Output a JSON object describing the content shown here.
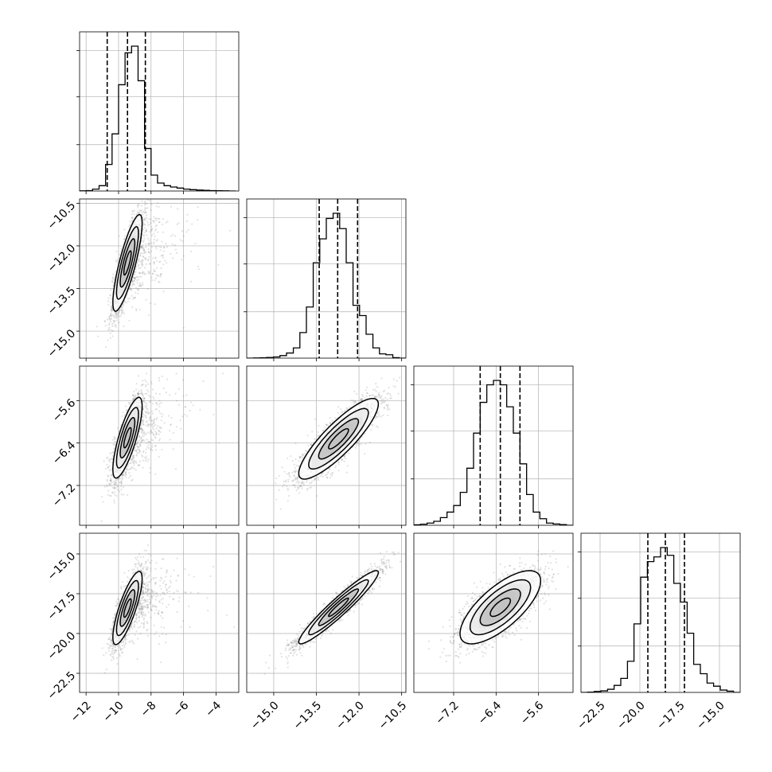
{
  "chart_data": {
    "type": "corner",
    "grid": true,
    "parameters": [
      {
        "name": "",
        "range": [
          -12.4,
          -2.6
        ],
        "ticks": [
          -12,
          -10,
          -8,
          -6,
          -4
        ],
        "tick_labels": [
          "−12",
          "−10",
          "−8",
          "−6",
          "−4"
        ],
        "quantiles": [
          -10.7,
          -9.45,
          -8.35
        ],
        "hist": {
          "bin_edges": [
            -12.4,
            -12.0,
            -11.6,
            -11.2,
            -10.8,
            -10.4,
            -10.0,
            -9.6,
            -9.2,
            -8.8,
            -8.4,
            -8.0,
            -7.6,
            -7.2,
            -6.8,
            -6.4,
            -6.0,
            -5.6,
            -5.2,
            -4.8,
            -4.4,
            -4.0,
            -3.6,
            -3.2,
            -2.8
          ],
          "counts": [
            1,
            3,
            14,
            40,
            200,
            430,
            800,
            1040,
            1090,
            830,
            320,
            120,
            60,
            40,
            30,
            22,
            14,
            10,
            7,
            5,
            3,
            2,
            1,
            0
          ]
        }
      },
      {
        "name": "",
        "range": [
          -15.95,
          -10.35
        ],
        "ticks": [
          -15.0,
          -13.5,
          -12.0,
          -10.5
        ],
        "tick_labels": [
          "−15.0",
          "−13.5",
          "−12.0",
          "−10.5"
        ],
        "quantiles": [
          -13.4,
          -12.75,
          -12.05
        ],
        "mean": -12.72,
        "std": 0.7,
        "hist": {
          "bin_edges": [
            -15.95,
            -15.71,
            -15.48,
            -15.25,
            -15.01,
            -14.78,
            -14.55,
            -14.31,
            -14.08,
            -13.85,
            -13.61,
            -13.38,
            -13.15,
            -12.91,
            -12.68,
            -12.45,
            -12.21,
            -11.98,
            -11.75,
            -11.51,
            -11.28,
            -11.05,
            -10.81,
            -10.58,
            -10.35
          ],
          "counts": [
            0,
            1,
            2,
            4,
            7,
            15,
            30,
            60,
            150,
            300,
            560,
            700,
            820,
            850,
            760,
            560,
            310,
            250,
            140,
            60,
            25,
            20,
            3,
            0
          ]
        }
      },
      {
        "name": "",
        "range": [
          -7.95,
          -4.95
        ],
        "ticks": [
          -7.2,
          -6.4,
          -5.6
        ],
        "tick_labels": [
          "−7.2",
          "−6.4",
          "−5.6"
        ],
        "quantiles": [
          -6.7,
          -6.32,
          -5.95
        ],
        "mean": -6.32,
        "std": 0.38,
        "hist": {
          "bin_edges": [
            -7.95,
            -7.825,
            -7.7,
            -7.575,
            -7.45,
            -7.325,
            -7.2,
            -7.075,
            -6.95,
            -6.825,
            -6.7,
            -6.575,
            -6.45,
            -6.325,
            -6.2,
            -6.075,
            -5.95,
            -5.825,
            -5.7,
            -5.575,
            -5.45,
            -5.325,
            -5.2,
            -5.075,
            -4.95
          ],
          "counts": [
            2,
            5,
            10,
            18,
            35,
            60,
            90,
            150,
            260,
            420,
            560,
            640,
            660,
            640,
            540,
            420,
            280,
            140,
            60,
            30,
            10,
            6,
            3,
            0
          ]
        }
      },
      {
        "name": "",
        "range": [
          -23.7,
          -13.7
        ],
        "ticks": [
          -22.5,
          -20.0,
          -17.5,
          -15.0
        ],
        "tick_labels": [
          "−22.5",
          "−20.0",
          "−17.5",
          "−15.0"
        ],
        "quantiles": [
          -19.5,
          -18.4,
          -17.2
        ],
        "mean": -18.35,
        "std": 1.15,
        "hist": {
          "bin_edges": [
            -23.7,
            -23.28,
            -22.87,
            -22.45,
            -22.03,
            -21.62,
            -21.2,
            -20.78,
            -20.37,
            -19.95,
            -19.53,
            -19.12,
            -18.7,
            -18.28,
            -17.87,
            -17.45,
            -17.03,
            -16.62,
            -16.2,
            -15.78,
            -15.37,
            -14.95,
            -14.53,
            -14.12,
            -13.7
          ],
          "counts": [
            0,
            2,
            6,
            10,
            20,
            45,
            90,
            200,
            440,
            740,
            840,
            870,
            930,
            880,
            700,
            580,
            380,
            180,
            120,
            60,
            40,
            15,
            8,
            0
          ]
        }
      }
    ],
    "pairs": [
      {
        "x": 0,
        "y": 1,
        "mean": [
          -9.45,
          -12.6
        ],
        "sigma": [
          0.45,
          0.85
        ],
        "rho": 0.82,
        "tail": "toward larger x and y"
      },
      {
        "x": 0,
        "y": 2,
        "mean": [
          -9.45,
          -6.3
        ],
        "sigma": [
          0.45,
          0.38
        ],
        "rho": 0.78,
        "tail": "toward larger x and y"
      },
      {
        "x": 0,
        "y": 3,
        "mean": [
          -9.45,
          -18.4
        ],
        "sigma": [
          0.45,
          1.15
        ],
        "rho": 0.8,
        "tail": "toward larger x and y"
      },
      {
        "x": 1,
        "y": 2,
        "mean": [
          -12.72,
          -6.32
        ],
        "sigma": [
          0.7,
          0.38
        ],
        "rho": 0.86
      },
      {
        "x": 1,
        "y": 3,
        "mean": [
          -12.72,
          -18.35
        ],
        "sigma": [
          0.7,
          1.15
        ],
        "rho": 0.95
      },
      {
        "x": 2,
        "y": 3,
        "mean": [
          -6.32,
          -18.35
        ],
        "sigma": [
          0.38,
          1.15
        ],
        "rho": 0.72
      }
    ],
    "contour_levels_sigma": [
      0.5,
      1.0,
      1.5,
      2.0
    ],
    "quantile_line_style": "dashed"
  }
}
